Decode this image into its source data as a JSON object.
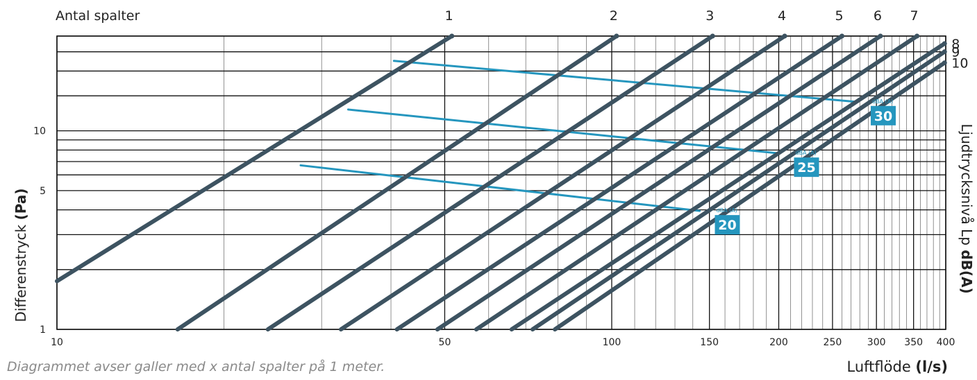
{
  "header": {
    "title": "Antal spalter"
  },
  "footnote": "Diagrammet avser galler med x antal spalter på 1 meter.",
  "axes": {
    "x_label_text": "Luftflöde ",
    "x_label_unit": "(l/s)",
    "y_left_text": "Differenstryck ",
    "y_left_unit": "(Pa)",
    "y_right_text": "Ljudtrycksnivå Lp ",
    "y_right_unit": "dB(A)"
  },
  "chart_data": {
    "type": "line",
    "x_scale": "log",
    "y_scale": "log",
    "xlim": [
      10,
      400
    ],
    "ylim": [
      1,
      30
    ],
    "grid": true,
    "x_ticks": [
      {
        "value": 10,
        "label": "10"
      },
      {
        "value": 50,
        "label": "50"
      },
      {
        "value": 100,
        "label": "100"
      },
      {
        "value": 150,
        "label": "150"
      },
      {
        "value": 200,
        "label": "200"
      },
      {
        "value": 250,
        "label": "250"
      },
      {
        "value": 300,
        "label": "300"
      },
      {
        "value": 350,
        "label": "350"
      },
      {
        "value": 400,
        "label": "400"
      }
    ],
    "y_ticks": [
      {
        "value": 1,
        "label": "1"
      },
      {
        "value": 5,
        "label": "5"
      },
      {
        "value": 10,
        "label": "10"
      }
    ],
    "series": [
      {
        "name": "1",
        "points": [
          [
            10,
            1.75
          ],
          [
            51.5,
            30
          ]
        ]
      },
      {
        "name": "2",
        "points": [
          [
            16.5,
            1
          ],
          [
            102,
            30
          ]
        ]
      },
      {
        "name": "3",
        "points": [
          [
            24,
            1
          ],
          [
            152,
            30
          ]
        ]
      },
      {
        "name": "4",
        "points": [
          [
            32.5,
            1
          ],
          [
            205,
            30
          ]
        ]
      },
      {
        "name": "5",
        "points": [
          [
            41,
            1
          ],
          [
            260,
            30
          ]
        ]
      },
      {
        "name": "6",
        "points": [
          [
            48.5,
            1
          ],
          [
            305,
            30
          ]
        ]
      },
      {
        "name": "7",
        "points": [
          [
            57,
            1
          ],
          [
            355,
            30
          ]
        ]
      },
      {
        "name": "8",
        "points": [
          [
            66,
            1
          ],
          [
            398,
            27.5
          ]
        ]
      },
      {
        "name": "9",
        "points": [
          [
            72,
            1
          ],
          [
            398,
            25
          ]
        ]
      },
      {
        "name": "10",
        "points": [
          [
            79,
            1
          ],
          [
            398,
            22
          ]
        ]
      }
    ],
    "sound_lines": [
      {
        "label": "20",
        "unit": "dBA (A)",
        "color": "#2596be",
        "points": [
          [
            27.5,
            6.7
          ],
          [
            144,
            3.95
          ]
        ]
      },
      {
        "label": "25",
        "unit": "dBA (A)",
        "color": "#2596be",
        "points": [
          [
            33.5,
            12.8
          ],
          [
            200,
            7.7
          ]
        ]
      },
      {
        "label": "30",
        "unit": "dBA (A)",
        "color": "#2596be",
        "points": [
          [
            40.5,
            22.5
          ],
          [
            275,
            14
          ]
        ]
      }
    ],
    "colors": {
      "series_line": "#3d5361",
      "sound_line": "#2596be",
      "grid_major": "#111111",
      "grid_minor": "#777777"
    }
  }
}
